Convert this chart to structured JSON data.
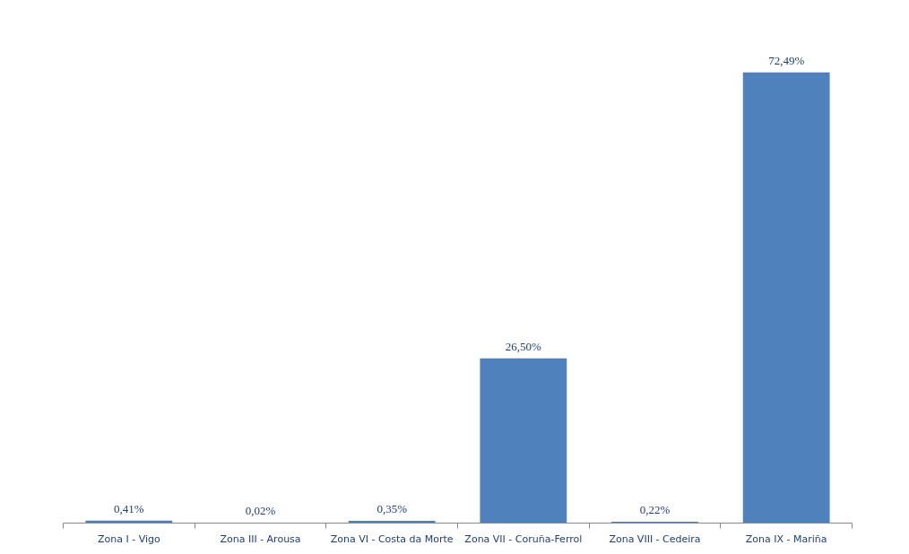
{
  "chart_data": {
    "type": "bar",
    "categories": [
      "Zona I - Vigo",
      "Zona III - Arousa",
      "Zona VI - Costa da Morte",
      "Zona VII - Coruña-Ferrol",
      "Zona VIII - Cedeira",
      "Zona IX - Mariña"
    ],
    "values": [
      0.41,
      0.02,
      0.35,
      26.5,
      0.22,
      72.49
    ],
    "value_labels": [
      "0,41%",
      "0,02%",
      "0,35%",
      "26,50%",
      "0,22%",
      "72,49%"
    ],
    "color": "#4f81bd",
    "tick_labels": "x"
  }
}
